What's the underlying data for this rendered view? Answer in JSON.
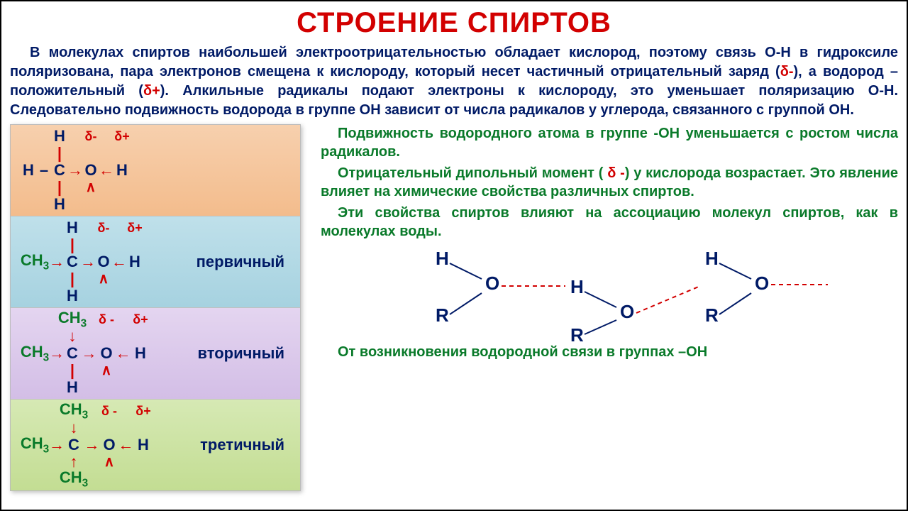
{
  "title": "СТРОЕНИЕ СПИРТОВ",
  "intro_html": "В молекулах спиртов наибольшей электроотрицательностью обладает кислород, поэтому связь О-Н в гидроксиле поляризована, пара электронов смещена к кислороду, который несет частичный отрицательный заряд (<span class='red'>δ-</span>), а водород – положительный (<span class='red'>δ+</span>). Алкильные радикалы подают электроны к кислороду, это уменьшает поляризацию О-Н. Следовательно подвижность водорода в группе ОН зависит от числа радикалов у углерода, связанного с группой ОН.",
  "rows": {
    "primary_label": "первичный",
    "secondary_label": "вторичный",
    "tertiary_label": "третичный"
  },
  "delta_minus": "δ-",
  "delta_plus": "δ+",
  "right": {
    "p1_html": "Подвижность водородного атома в группе -ОН уменьшается с ростом числа радикалов.",
    "p2_html": "Отрицательный дипольный момент ( <span class='red'>δ -</span>) у кислорода возрастает. Это явление влияет на химические свойства различных спиртов.",
    "p3_html": "Эти свойства спиртов влияют на ассоциацию молекул спиртов, как в молекулах воды.",
    "footer": "От возникновения водородной связи в группах –ОН"
  },
  "colors": {
    "title": "#d20000",
    "body_blue": "#001a66",
    "green": "#0a7a2a",
    "row_methanol_top": "#f7d0ae",
    "row_primary_top": "#bfe0ea",
    "row_secondary_top": "#e4d5f0",
    "row_tertiary_top": "#d6e9b4",
    "bond_dash": "#d20000"
  },
  "hbond": {
    "atoms": [
      "H",
      "O",
      "H",
      "O",
      "H",
      "O"
    ],
    "R_label": "R",
    "dash_color": "#d20000",
    "line_color": "#001a66",
    "text_color": "#001a66"
  }
}
